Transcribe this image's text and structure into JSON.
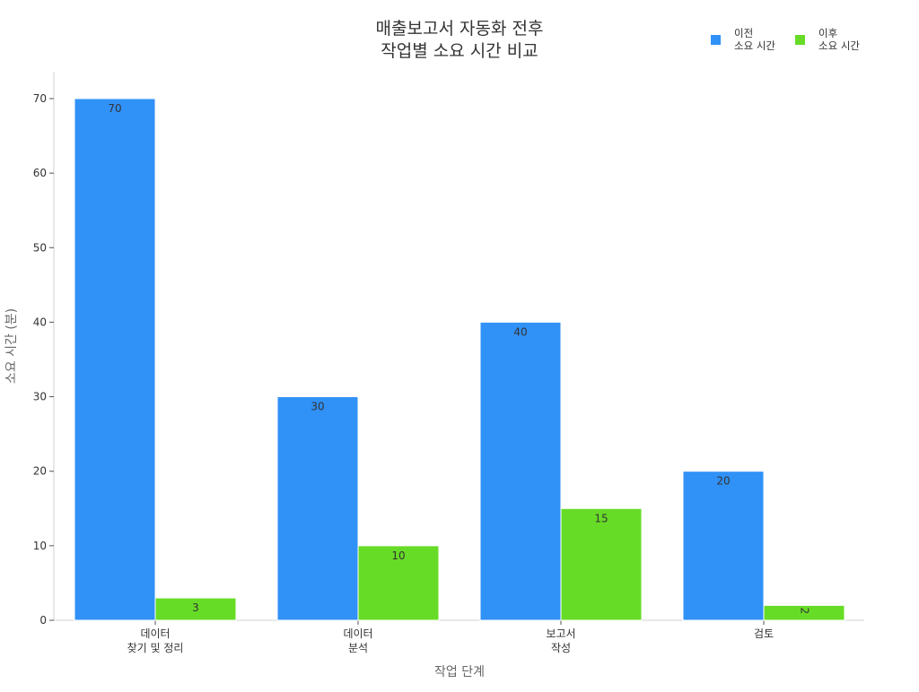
{
  "chart_data": {
    "type": "bar",
    "title": [
      "매출보고서 자동화 전후",
      "작업별 소요 시간 비교"
    ],
    "xlabel": "작업 단계",
    "ylabel": "소요 시간 (분)",
    "ylim": [
      0,
      73
    ],
    "yticks": [
      0,
      10,
      20,
      30,
      40,
      50,
      60,
      70
    ],
    "categories": [
      [
        "데이터",
        "찾기 및 정리"
      ],
      [
        "데이터",
        "분석"
      ],
      [
        "보고서",
        "작성"
      ],
      [
        "검토"
      ]
    ],
    "series": [
      {
        "name": [
          "이전",
          "소요 시간"
        ],
        "color": "#3091f7",
        "values": [
          70,
          30,
          40,
          20
        ]
      },
      {
        "name": [
          "이후",
          "소요 시간"
        ],
        "color": "#67dc26",
        "values": [
          3,
          10,
          15,
          2
        ]
      }
    ],
    "legend": "top-right",
    "grid": false
  }
}
